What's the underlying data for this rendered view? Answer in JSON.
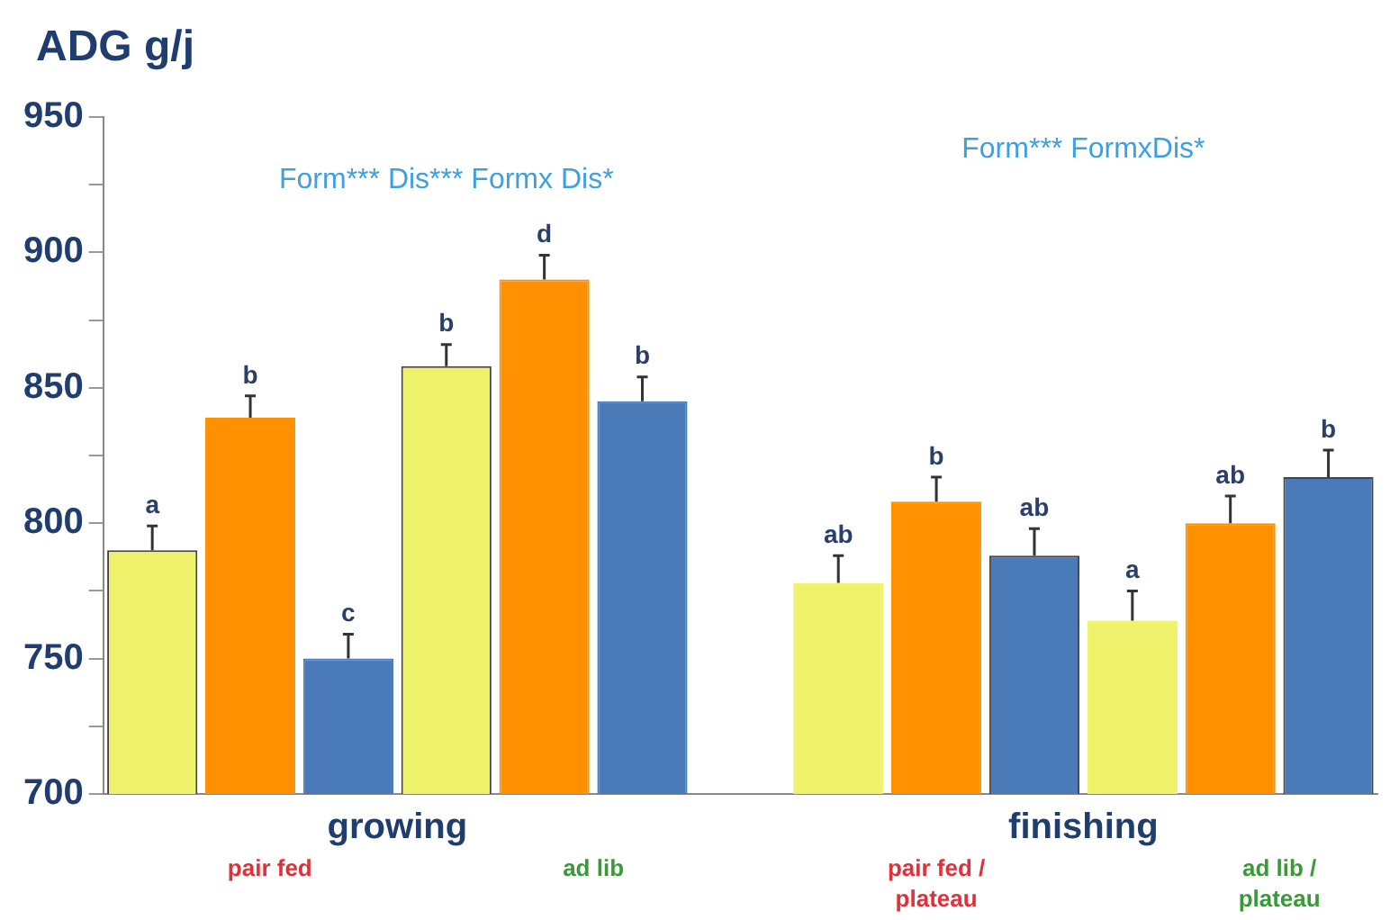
{
  "chart_data": {
    "type": "bar",
    "ylabel": "ADG g/j",
    "categories": [
      null,
      null,
      null,
      null,
      null,
      null,
      null,
      null,
      null,
      null,
      null,
      null,
      null
    ],
    "values": [
      790,
      839,
      750,
      858,
      890,
      845,
      null,
      778,
      808,
      788,
      764,
      800,
      817
    ],
    "errors": [
      9,
      8,
      9,
      8,
      9,
      9,
      null,
      10,
      9,
      10,
      11,
      10,
      10
    ],
    "colors": [
      "#eef26a",
      "#ff9000",
      "#4a7ab8",
      "#eef26a",
      "#ff9000",
      "#4a7ab8",
      "#ffffff",
      "#eef26a",
      "#ff9000",
      "#4a7ab8",
      "#eef26a",
      "#ff9000",
      "#4a7ab8"
    ],
    "value_labels": [
      "a",
      "b",
      "c",
      "b",
      "d",
      "b",
      null,
      "ab",
      "b",
      "ab",
      "a",
      "ab",
      "b"
    ],
    "ylim": [
      700,
      950
    ],
    "yticks": [
      700,
      {
        "value": 725,
        "label": null
      },
      750,
      {
        "value": 775,
        "label": null
      },
      800,
      {
        "value": 825,
        "label": null
      },
      850,
      {
        "value": 875,
        "label": null
      },
      900,
      {
        "value": 925,
        "label": null
      },
      950
    ],
    "grid": false,
    "legend": false,
    "annotations": [
      "Form*** Dis*** Formx Dis*",
      "Form*** FormxDis*",
      "growing",
      "finishing",
      "pair fed",
      "ad lib",
      "pair fed /\nplateau",
      "ad lib /\nplateau"
    ]
  }
}
